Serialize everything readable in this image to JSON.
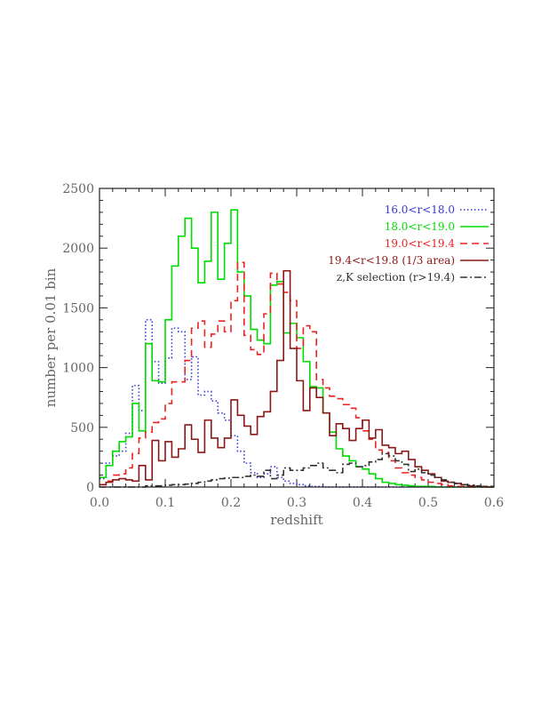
{
  "chart_data": {
    "type": "histogram",
    "xlabel": "redshift",
    "ylabel": "number per 0.01 bin",
    "xlim": [
      0.0,
      0.6
    ],
    "ylim": [
      0,
      2500
    ],
    "xticks": [
      "0.0",
      "0.1",
      "0.2",
      "0.3",
      "0.4",
      "0.5",
      "0.6"
    ],
    "yticks": [
      "0",
      "500",
      "1000",
      "1500",
      "2000",
      "2500"
    ],
    "grid": false,
    "legend_position": "top-right",
    "bin_width": 0.01,
    "x": [
      0.0,
      0.01,
      0.02,
      0.03,
      0.04,
      0.05,
      0.06,
      0.07,
      0.08,
      0.09,
      0.1,
      0.11,
      0.12,
      0.13,
      0.14,
      0.15,
      0.16,
      0.17,
      0.18,
      0.19,
      0.2,
      0.21,
      0.22,
      0.23,
      0.24,
      0.25,
      0.26,
      0.27,
      0.28,
      0.29,
      0.3,
      0.31,
      0.32,
      0.33,
      0.34,
      0.35,
      0.36,
      0.37,
      0.38,
      0.39,
      0.4,
      0.41,
      0.42,
      0.43,
      0.44,
      0.45,
      0.46,
      0.47,
      0.48,
      0.49,
      0.5,
      0.51,
      0.52,
      0.53,
      0.54,
      0.55,
      0.56,
      0.57,
      0.58,
      0.59
    ],
    "series": [
      {
        "name": "16.0<r<18.0",
        "color": "#3a3ad6",
        "style": "dotted",
        "values": [
          70,
          200,
          260,
          300,
          450,
          850,
          640,
          1400,
          1050,
          870,
          1080,
          1330,
          1300,
          900,
          1090,
          770,
          800,
          720,
          620,
          560,
          430,
          300,
          200,
          120,
          80,
          110,
          170,
          80,
          50,
          30,
          20,
          10,
          5,
          5,
          0,
          0,
          0,
          0,
          0,
          0,
          0,
          0,
          0,
          0,
          0,
          0,
          0,
          0,
          0,
          0,
          0,
          0,
          0,
          0,
          0,
          0,
          0,
          0,
          0,
          0
        ]
      },
      {
        "name": "18.0<r<19.0",
        "color": "#00dd00",
        "style": "solid",
        "values": [
          80,
          180,
          300,
          380,
          420,
          700,
          470,
          1200,
          890,
          880,
          1400,
          1850,
          2100,
          2250,
          2000,
          1710,
          1890,
          2300,
          1740,
          2040,
          2320,
          1800,
          1600,
          1320,
          1230,
          1200,
          1690,
          1720,
          1290,
          1370,
          1250,
          1050,
          840,
          830,
          620,
          460,
          320,
          260,
          220,
          170,
          150,
          110,
          70,
          40,
          30,
          20,
          15,
          10,
          5,
          5,
          5,
          0,
          0,
          0,
          0,
          0,
          0,
          0,
          0,
          0
        ]
      },
      {
        "name": "19.0<r<19.4",
        "color": "#ee2222",
        "style": "dashed",
        "values": [
          20,
          50,
          100,
          110,
          160,
          280,
          410,
          460,
          540,
          570,
          700,
          880,
          880,
          1060,
          1330,
          1390,
          1170,
          1280,
          1390,
          1300,
          1560,
          1880,
          1270,
          1150,
          1110,
          1450,
          1790,
          1700,
          1630,
          1560,
          1160,
          1350,
          1300,
          900,
          830,
          760,
          740,
          690,
          660,
          580,
          470,
          400,
          310,
          290,
          220,
          160,
          120,
          100,
          80,
          60,
          40,
          30,
          20,
          10,
          5,
          5,
          0,
          0,
          0,
          0
        ]
      },
      {
        "name": "19.4<r<19.8 (1/3 area)",
        "color": "#8b1818",
        "style": "solid",
        "values": [
          20,
          40,
          60,
          70,
          60,
          50,
          180,
          60,
          390,
          220,
          380,
          250,
          320,
          520,
          400,
          290,
          560,
          410,
          330,
          410,
          730,
          600,
          510,
          440,
          590,
          630,
          800,
          1060,
          1810,
          1160,
          890,
          640,
          830,
          750,
          620,
          430,
          530,
          490,
          390,
          490,
          560,
          410,
          480,
          350,
          330,
          280,
          300,
          230,
          170,
          140,
          110,
          80,
          50,
          40,
          30,
          20,
          10,
          5,
          5,
          0
        ]
      },
      {
        "name": "z,K selection (r>19.4)",
        "color": "#333333",
        "style": "dashdot",
        "values": [
          0,
          0,
          0,
          0,
          0,
          0,
          0,
          10,
          10,
          10,
          15,
          20,
          20,
          25,
          30,
          40,
          50,
          60,
          70,
          75,
          80,
          80,
          90,
          100,
          90,
          140,
          70,
          100,
          160,
          140,
          140,
          160,
          180,
          200,
          160,
          140,
          120,
          190,
          200,
          170,
          180,
          210,
          230,
          280,
          260,
          220,
          190,
          130,
          150,
          120,
          100,
          80,
          60,
          40,
          30,
          20,
          15,
          10,
          5,
          5
        ]
      }
    ]
  }
}
